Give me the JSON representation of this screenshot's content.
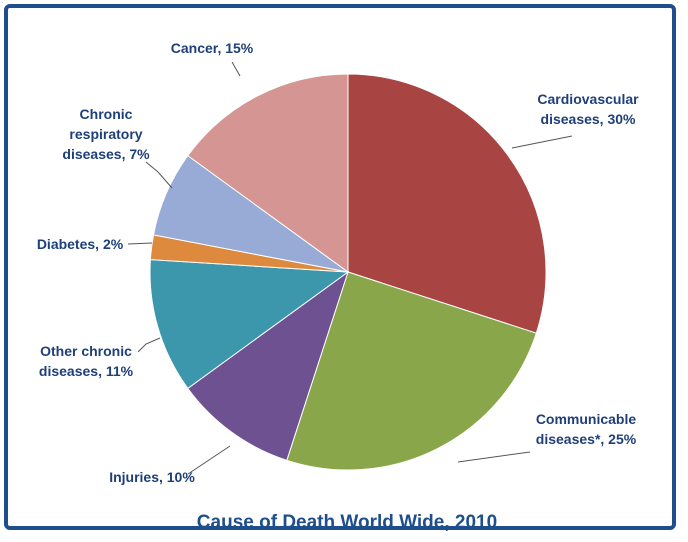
{
  "chart_data": {
    "type": "pie",
    "title": "Cause of Death World Wide, 2010",
    "start_angle_deg": 0,
    "direction": "clockwise",
    "slices": [
      {
        "label_lines": [
          "Cardiovascular",
          "diseases, 30%"
        ],
        "value": 30,
        "color": "#a84442"
      },
      {
        "label_lines": [
          "Communicable",
          "diseases*, 25%"
        ],
        "value": 25,
        "color": "#8aa64a"
      },
      {
        "label_lines": [
          "Injuries, 10%"
        ],
        "value": 10,
        "color": "#6e5190"
      },
      {
        "label_lines": [
          "Other chronic",
          "diseases, 11%"
        ],
        "value": 11,
        "color": "#3d97ac"
      },
      {
        "label_lines": [
          "Diabetes, 2%"
        ],
        "value": 2,
        "color": "#dd8a3e"
      },
      {
        "label_lines": [
          "Chronic",
          "respiratory",
          "diseases, 7%"
        ],
        "value": 7,
        "color": "#97abd6"
      },
      {
        "label_lines": [
          "Cancer, 15%"
        ],
        "value": 15,
        "color": "#d59593"
      }
    ]
  }
}
